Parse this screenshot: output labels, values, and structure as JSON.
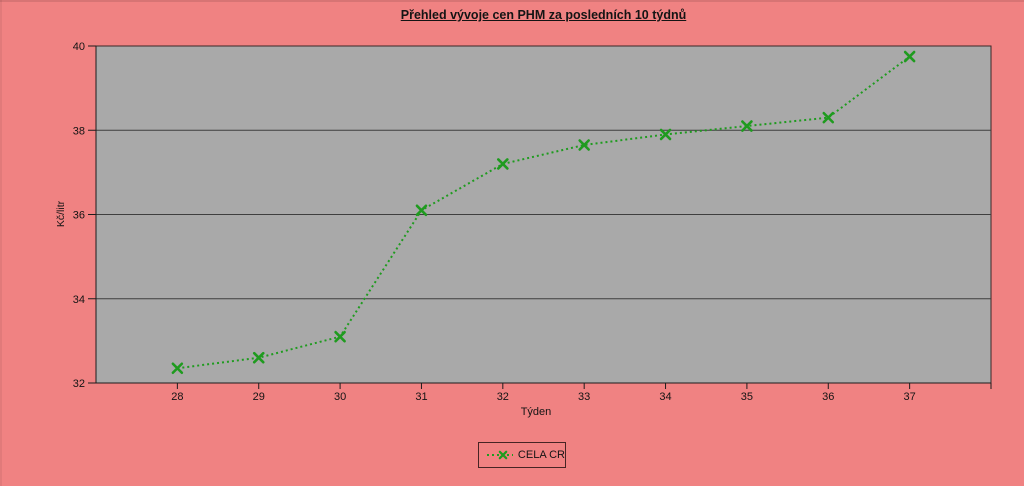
{
  "colors": {
    "background": "#f08282",
    "plot_fill": "#a9a9a9",
    "grid": "#3f3f3f",
    "axis": "#1c1c1c",
    "plot_border": "#3a2626",
    "series_green": "#1f9b1f",
    "text": "#141414",
    "legend_border": "#472424"
  },
  "chart_data": {
    "type": "line",
    "title": "Přehled vývoje cen PHM za posledních 10 týdnů",
    "xlabel": "Týden",
    "ylabel": "Kč/litr",
    "categories": [
      28,
      29,
      30,
      31,
      32,
      33,
      34,
      35,
      36,
      37
    ],
    "series": [
      {
        "name": "CELA CR",
        "values": [
          32.35,
          32.6,
          33.1,
          36.1,
          37.2,
          37.65,
          37.9,
          38.1,
          38.3,
          39.75
        ]
      }
    ],
    "ylim": [
      32,
      40
    ],
    "y_ticks": [
      32,
      34,
      36,
      38,
      40
    ],
    "grid": "horizontal",
    "line_style": "dotted",
    "marker": "x",
    "legend_position": "bottom"
  }
}
